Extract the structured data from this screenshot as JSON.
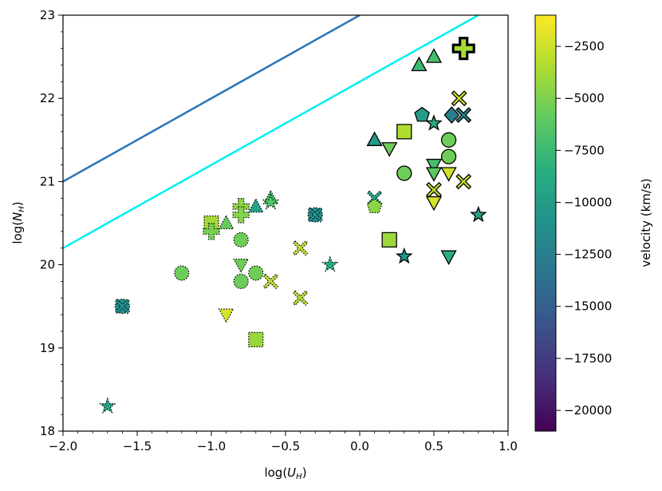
{
  "chart_data": {
    "type": "scatter",
    "xlabel": "log(U_H)",
    "ylabel": "log(N_H)",
    "xlim": [
      -2.0,
      1.0
    ],
    "ylim": [
      18,
      23
    ],
    "x_ticks": [
      "−2.0",
      "−1.5",
      "−1.0",
      "−0.5",
      "0.0",
      "0.5",
      "1.0"
    ],
    "x_tick_values": [
      -2.0,
      -1.5,
      -1.0,
      -0.5,
      0.0,
      0.5,
      1.0
    ],
    "y_ticks": [
      "18",
      "19",
      "20",
      "21",
      "22",
      "23"
    ],
    "y_tick_values": [
      18,
      19,
      20,
      21,
      22,
      23
    ],
    "colorbar": {
      "label": "velocity (km/s)",
      "range": [
        -21000,
        -1000
      ],
      "ticks": [
        "−2500",
        "−5000",
        "−7500",
        "−10000",
        "−12500",
        "−15000",
        "−17500",
        "−20000"
      ],
      "tick_values": [
        -2500,
        -5000,
        -7500,
        -10000,
        -12500,
        -15000,
        -17500,
        -20000
      ],
      "colormap": "viridis"
    },
    "lines": [
      {
        "name": "blue-line",
        "color": "#2a74b6",
        "points": [
          [
            -2.0,
            21.0
          ],
          [
            0.0,
            23.0
          ]
        ]
      },
      {
        "name": "cyan-line",
        "color": "#00f0f0",
        "points": [
          [
            -2.0,
            20.2
          ],
          [
            0.8,
            23.0
          ]
        ]
      }
    ],
    "points": [
      {
        "x": 0.7,
        "y": 22.6,
        "marker": "plus",
        "velocity": -3800,
        "edge": "thick"
      },
      {
        "x": 0.5,
        "y": 22.5,
        "marker": "triangle",
        "velocity": -7000,
        "edge": "solid"
      },
      {
        "x": 0.4,
        "y": 22.4,
        "marker": "triangle",
        "velocity": -7500,
        "edge": "solid"
      },
      {
        "x": 0.67,
        "y": 22.0,
        "marker": "x",
        "velocity": -2500,
        "edge": "solid"
      },
      {
        "x": 0.7,
        "y": 21.8,
        "marker": "x",
        "velocity": -12000,
        "edge": "solid"
      },
      {
        "x": 0.62,
        "y": 21.8,
        "marker": "diamond",
        "velocity": -12500,
        "edge": "solid"
      },
      {
        "x": 0.42,
        "y": 21.8,
        "marker": "pentagon",
        "velocity": -10000,
        "edge": "solid"
      },
      {
        "x": 0.5,
        "y": 21.7,
        "marker": "star",
        "velocity": -9000,
        "edge": "solid"
      },
      {
        "x": 0.3,
        "y": 21.6,
        "marker": "square",
        "velocity": -3500,
        "edge": "solid"
      },
      {
        "x": 0.6,
        "y": 21.5,
        "marker": "circle",
        "velocity": -5500,
        "edge": "solid"
      },
      {
        "x": 0.1,
        "y": 21.5,
        "marker": "triangle",
        "velocity": -10500,
        "edge": "solid"
      },
      {
        "x": 0.2,
        "y": 21.4,
        "marker": "triangle_down",
        "velocity": -5500,
        "edge": "solid"
      },
      {
        "x": 0.6,
        "y": 21.3,
        "marker": "circle",
        "velocity": -5500,
        "edge": "solid"
      },
      {
        "x": 0.5,
        "y": 21.2,
        "marker": "triangle_down",
        "velocity": -7000,
        "edge": "solid"
      },
      {
        "x": 0.3,
        "y": 21.1,
        "marker": "circle",
        "velocity": -5500,
        "edge": "solid"
      },
      {
        "x": 0.5,
        "y": 21.1,
        "marker": "triangle_down",
        "velocity": -6000,
        "edge": "solid"
      },
      {
        "x": 0.6,
        "y": 21.1,
        "marker": "triangle_down",
        "velocity": -2500,
        "edge": "solid"
      },
      {
        "x": 0.7,
        "y": 21.0,
        "marker": "x",
        "velocity": -3000,
        "edge": "solid"
      },
      {
        "x": 0.5,
        "y": 20.9,
        "marker": "x",
        "velocity": -2800,
        "edge": "solid"
      },
      {
        "x": 0.5,
        "y": 20.75,
        "marker": "triangle_down",
        "velocity": -2200,
        "edge": "solid"
      },
      {
        "x": 0.8,
        "y": 20.6,
        "marker": "star",
        "velocity": -10000,
        "edge": "solid"
      },
      {
        "x": 0.2,
        "y": 20.3,
        "marker": "square",
        "velocity": -4000,
        "edge": "solid"
      },
      {
        "x": 0.3,
        "y": 20.1,
        "marker": "star",
        "velocity": -10500,
        "edge": "solid"
      },
      {
        "x": 0.6,
        "y": 20.1,
        "marker": "triangle_down",
        "velocity": -8500,
        "edge": "solid"
      },
      {
        "x": 0.1,
        "y": 20.8,
        "marker": "x",
        "velocity": -9500,
        "edge": "dotted"
      },
      {
        "x": 0.1,
        "y": 20.7,
        "marker": "pentagon",
        "velocity": -4500,
        "edge": "dotted"
      },
      {
        "x": -0.6,
        "y": 20.8,
        "marker": "triangle",
        "velocity": -7000,
        "edge": "dotted"
      },
      {
        "x": -0.6,
        "y": 20.75,
        "marker": "star",
        "velocity": -6500,
        "edge": "dotted"
      },
      {
        "x": -0.7,
        "y": 20.7,
        "marker": "triangle",
        "velocity": -9500,
        "edge": "dotted"
      },
      {
        "x": -0.8,
        "y": 20.7,
        "marker": "plus",
        "velocity": -4500,
        "edge": "dotted"
      },
      {
        "x": -0.8,
        "y": 20.6,
        "marker": "plus",
        "velocity": -4800,
        "edge": "dotted"
      },
      {
        "x": -0.3,
        "y": 20.6,
        "marker": "circle",
        "velocity": -11500,
        "edge": "dotted"
      },
      {
        "x": -0.3,
        "y": 20.6,
        "marker": "x",
        "velocity": -11000,
        "edge": "dotted"
      },
      {
        "x": -1.0,
        "y": 20.5,
        "marker": "square",
        "velocity": -3800,
        "edge": "dotted"
      },
      {
        "x": -0.9,
        "y": 20.5,
        "marker": "triangle",
        "velocity": -5800,
        "edge": "dotted"
      },
      {
        "x": -1.0,
        "y": 20.4,
        "marker": "plus",
        "velocity": -5200,
        "edge": "dotted"
      },
      {
        "x": -0.8,
        "y": 20.3,
        "marker": "circle",
        "velocity": -5500,
        "edge": "dotted"
      },
      {
        "x": -0.4,
        "y": 20.2,
        "marker": "x",
        "velocity": -3200,
        "edge": "dotted"
      },
      {
        "x": -0.8,
        "y": 20.0,
        "marker": "triangle_down",
        "velocity": -5500,
        "edge": "dotted"
      },
      {
        "x": -0.2,
        "y": 20.0,
        "marker": "star",
        "velocity": -9000,
        "edge": "dotted"
      },
      {
        "x": -1.2,
        "y": 19.9,
        "marker": "circle",
        "velocity": -5500,
        "edge": "dotted"
      },
      {
        "x": -0.7,
        "y": 19.9,
        "marker": "circle",
        "velocity": -5500,
        "edge": "dotted"
      },
      {
        "x": -0.8,
        "y": 19.8,
        "marker": "circle",
        "velocity": -5500,
        "edge": "dotted"
      },
      {
        "x": -0.6,
        "y": 19.8,
        "marker": "x",
        "velocity": -3200,
        "edge": "dotted"
      },
      {
        "x": -0.4,
        "y": 19.6,
        "marker": "x",
        "velocity": -3400,
        "edge": "dotted"
      },
      {
        "x": -1.6,
        "y": 19.5,
        "marker": "circle",
        "velocity": -11000,
        "edge": "dotted"
      },
      {
        "x": -1.6,
        "y": 19.5,
        "marker": "x",
        "velocity": -11000,
        "edge": "dotted"
      },
      {
        "x": -0.9,
        "y": 19.4,
        "marker": "triangle_down",
        "velocity": -2200,
        "edge": "dotted"
      },
      {
        "x": -0.7,
        "y": 19.1,
        "marker": "square",
        "velocity": -4200,
        "edge": "dotted"
      },
      {
        "x": -1.7,
        "y": 18.3,
        "marker": "star",
        "velocity": -9500,
        "edge": "dotted"
      }
    ]
  }
}
